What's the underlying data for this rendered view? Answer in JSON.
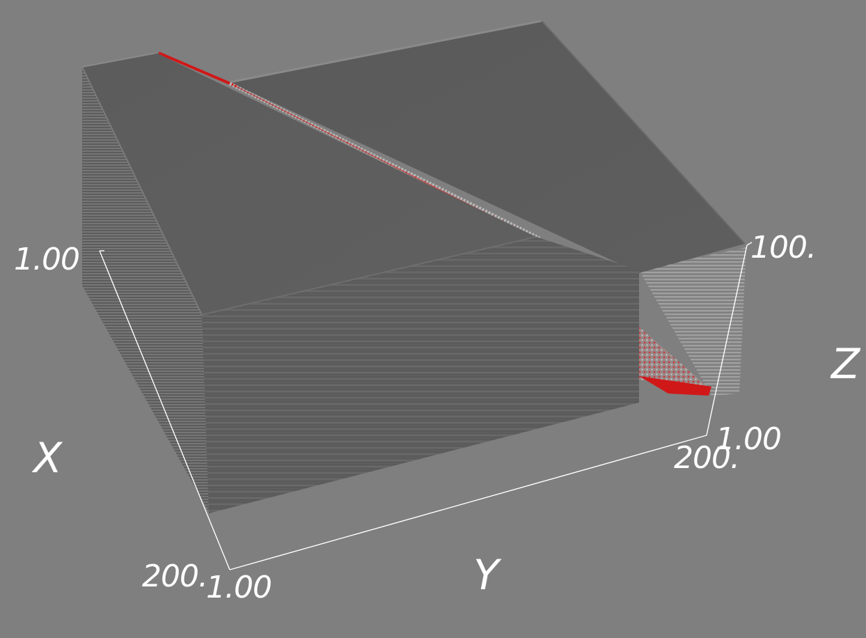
{
  "axes": {
    "x": {
      "label": "X",
      "tick_start": "1.00",
      "tick_end": "200."
    },
    "y": {
      "label": "Y",
      "tick_start": "1.00",
      "tick_end": "200."
    },
    "z": {
      "label": "Z",
      "tick_start": "1.00",
      "tick_end": "100."
    }
  },
  "colors": {
    "background": "#7f7f7f",
    "volume_top": "#5e5e5e",
    "volume_side": "#626262",
    "fault": "#d01818",
    "axis_lines": "#ffffff"
  }
}
